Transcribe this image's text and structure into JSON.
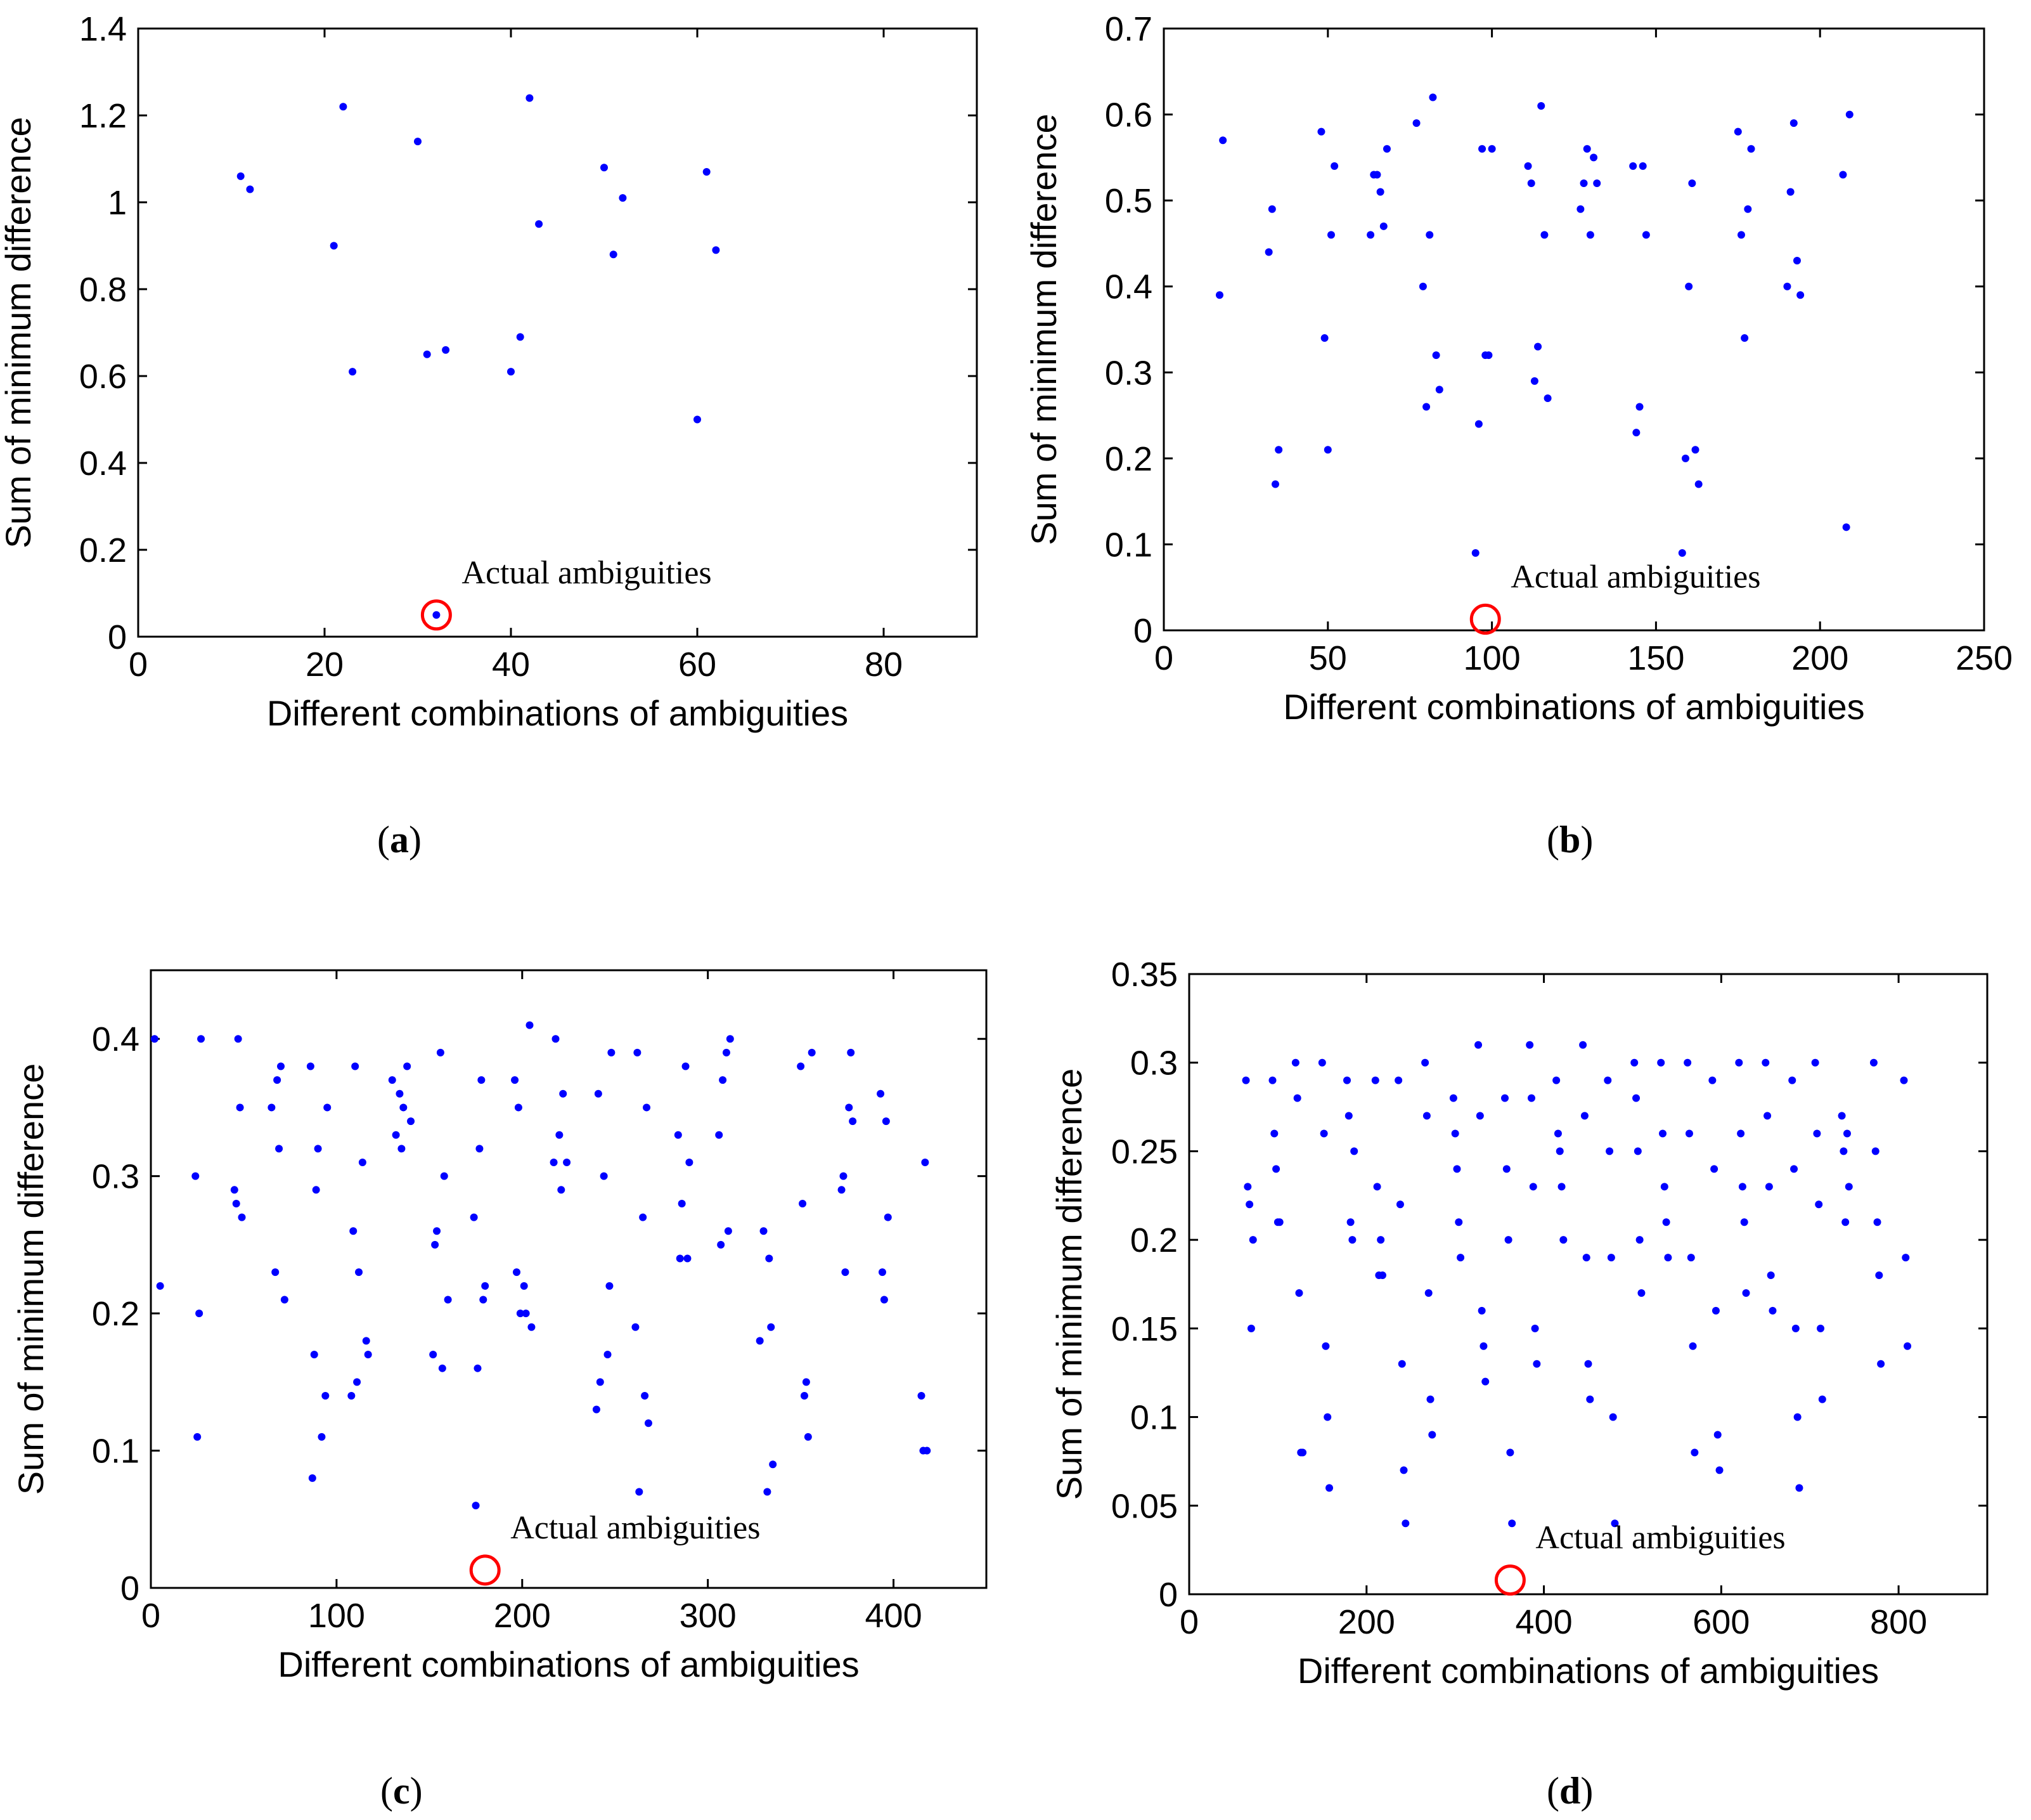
{
  "chart_data": [
    {
      "type": "scatter",
      "panel": "a",
      "xlabel": "Different combinations of ambiguities",
      "ylabel": "Sum of minimum difference",
      "xlim": [
        0,
        90
      ],
      "ylim": [
        0,
        1.4
      ],
      "xticks": [
        0,
        20,
        40,
        60,
        80
      ],
      "yticks": [
        0,
        0.2,
        0.4,
        0.6,
        0.8,
        1,
        1.2,
        1.4
      ],
      "annotation": "Actual ambiguities",
      "highlight": {
        "x": 32,
        "y": 0.05
      },
      "x": [
        11,
        12,
        21,
        22,
        23,
        30,
        31,
        33,
        40,
        41,
        42,
        43,
        50,
        51,
        52,
        60,
        61,
        62,
        32
      ],
      "y": [
        1.06,
        1.03,
        0.9,
        1.22,
        0.61,
        1.14,
        0.65,
        0.66,
        0.61,
        0.69,
        1.24,
        0.95,
        1.08,
        0.88,
        1.01,
        0.5,
        1.07,
        0.89,
        0.05
      ]
    },
    {
      "type": "scatter",
      "panel": "b",
      "xlabel": "Different combinations of ambiguities",
      "ylabel": "Sum of minimum difference",
      "xlim": [
        0,
        250
      ],
      "ylim": [
        0,
        0.7
      ],
      "xticks": [
        0,
        50,
        100,
        150,
        200,
        250
      ],
      "yticks": [
        0,
        0.1,
        0.2,
        0.3,
        0.4,
        0.5,
        0.6,
        0.7
      ],
      "annotation": "Actual ambiguities",
      "highlight": {
        "x": 98,
        "y": 0.013
      },
      "x": [
        17,
        18,
        32,
        33,
        34,
        35,
        48,
        49,
        50,
        51,
        52,
        63,
        64,
        65,
        66,
        67,
        68,
        77,
        79,
        80,
        81,
        82,
        83,
        84,
        95,
        96,
        97,
        98,
        99,
        100,
        111,
        112,
        113,
        114,
        115,
        116,
        117,
        127,
        128,
        129,
        130,
        131,
        132,
        143,
        144,
        145,
        146,
        147,
        158,
        159,
        160,
        161,
        162,
        163,
        175,
        176,
        177,
        178,
        179,
        190,
        191,
        192,
        193,
        194,
        207,
        208,
        209
      ],
      "y": [
        0.39,
        0.57,
        0.44,
        0.49,
        0.17,
        0.21,
        0.58,
        0.34,
        0.21,
        0.46,
        0.54,
        0.46,
        0.53,
        0.53,
        0.51,
        0.47,
        0.56,
        0.59,
        0.4,
        0.26,
        0.46,
        0.62,
        0.32,
        0.28,
        0.09,
        0.24,
        0.56,
        0.32,
        0.32,
        0.56,
        0.54,
        0.52,
        0.29,
        0.33,
        0.61,
        0.46,
        0.27,
        0.49,
        0.52,
        0.56,
        0.46,
        0.55,
        0.52,
        0.54,
        0.23,
        0.26,
        0.54,
        0.46,
        0.09,
        0.2,
        0.4,
        0.52,
        0.21,
        0.17,
        0.58,
        0.46,
        0.34,
        0.49,
        0.56,
        0.4,
        0.51,
        0.59,
        0.43,
        0.39,
        0.53,
        0.12,
        0.6
      ]
    },
    {
      "type": "scatter",
      "panel": "c",
      "xlabel": "Different combinations of ambiguities",
      "ylabel": "Sum of minimum difference",
      "xlim": [
        0,
        450
      ],
      "ylim": [
        0,
        0.45
      ],
      "xticks": [
        0,
        100,
        200,
        300,
        400
      ],
      "yticks": [
        0,
        0.1,
        0.2,
        0.3,
        0.4
      ],
      "annotation": "Actual ambiguities",
      "highlight": {
        "x": 180,
        "y": 0.013
      },
      "x": [
        2,
        5,
        24,
        25,
        26,
        27,
        45,
        46,
        47,
        48,
        49,
        65,
        67,
        68,
        69,
        70,
        72,
        86,
        87,
        88,
        89,
        90,
        92,
        94,
        95,
        108,
        109,
        110,
        111,
        112,
        114,
        116,
        117,
        130,
        132,
        134,
        135,
        136,
        138,
        140,
        152,
        153,
        154,
        156,
        157,
        158,
        160,
        174,
        175,
        176,
        177,
        178,
        179,
        180,
        196,
        197,
        198,
        199,
        201,
        202,
        204,
        205,
        217,
        218,
        220,
        221,
        222,
        224,
        240,
        241,
        242,
        244,
        246,
        247,
        248,
        261,
        262,
        263,
        265,
        266,
        267,
        268,
        284,
        285,
        286,
        288,
        289,
        290,
        306,
        307,
        308,
        310,
        311,
        312,
        328,
        330,
        332,
        333,
        334,
        335,
        350,
        351,
        352,
        353,
        354,
        356,
        372,
        373,
        374,
        376,
        377,
        378,
        393,
        394,
        395,
        396,
        397,
        415,
        416,
        417,
        418
      ],
      "y": [
        0.4,
        0.22,
        0.3,
        0.11,
        0.2,
        0.4,
        0.29,
        0.28,
        0.4,
        0.35,
        0.27,
        0.35,
        0.23,
        0.37,
        0.32,
        0.38,
        0.21,
        0.38,
        0.08,
        0.17,
        0.29,
        0.32,
        0.11,
        0.14,
        0.35,
        0.14,
        0.26,
        0.38,
        0.15,
        0.23,
        0.31,
        0.18,
        0.17,
        0.37,
        0.33,
        0.36,
        0.32,
        0.35,
        0.38,
        0.34,
        0.17,
        0.25,
        0.26,
        0.39,
        0.16,
        0.3,
        0.21,
        0.27,
        0.06,
        0.16,
        0.32,
        0.37,
        0.21,
        0.22,
        0.37,
        0.23,
        0.35,
        0.2,
        0.22,
        0.2,
        0.41,
        0.19,
        0.31,
        0.4,
        0.33,
        0.29,
        0.36,
        0.31,
        0.13,
        0.36,
        0.15,
        0.3,
        0.17,
        0.22,
        0.39,
        0.19,
        0.39,
        0.07,
        0.27,
        0.14,
        0.35,
        0.12,
        0.33,
        0.24,
        0.28,
        0.38,
        0.24,
        0.31,
        0.33,
        0.25,
        0.37,
        0.39,
        0.26,
        0.4,
        0.18,
        0.26,
        0.07,
        0.24,
        0.19,
        0.09,
        0.38,
        0.28,
        0.14,
        0.15,
        0.11,
        0.39,
        0.29,
        0.3,
        0.23,
        0.35,
        0.39,
        0.34,
        0.36,
        0.23,
        0.21,
        0.34,
        0.27,
        0.14,
        0.1,
        0.31,
        0.1
      ]
    },
    {
      "type": "scatter",
      "panel": "d",
      "xlabel": "Different combinations of ambiguities",
      "ylabel": "Sum of minimum difference",
      "xlim": [
        0,
        900
      ],
      "ylim": [
        0,
        0.35
      ],
      "xticks": [
        0,
        200,
        400,
        600,
        800
      ],
      "yticks": [
        0,
        0.05,
        0.1,
        0.15,
        0.2,
        0.25,
        0.3,
        0.35
      ],
      "annotation": "Actual ambiguities",
      "highlight": {
        "x": 362,
        "y": 0.008
      },
      "x": [
        64,
        66,
        68,
        70,
        72,
        94,
        96,
        98,
        100,
        102,
        120,
        122,
        124,
        126,
        128,
        150,
        152,
        154,
        156,
        158,
        178,
        180,
        182,
        184,
        186,
        210,
        212,
        214,
        216,
        218,
        236,
        238,
        240,
        242,
        244,
        266,
        268,
        270,
        272,
        274,
        298,
        300,
        302,
        304,
        306,
        326,
        328,
        330,
        332,
        334,
        356,
        358,
        360,
        362,
        364,
        384,
        386,
        388,
        390,
        392,
        414,
        416,
        418,
        420,
        422,
        444,
        446,
        448,
        450,
        452,
        472,
        474,
        476,
        478,
        480,
        502,
        504,
        506,
        508,
        510,
        532,
        534,
        536,
        538,
        540,
        562,
        564,
        566,
        568,
        570,
        590,
        592,
        594,
        596,
        598,
        620,
        622,
        624,
        626,
        628,
        650,
        652,
        654,
        656,
        658,
        680,
        682,
        684,
        686,
        688,
        706,
        708,
        710,
        712,
        714,
        736,
        738,
        740,
        742,
        744,
        772,
        774,
        776,
        778,
        780,
        806,
        808,
        810
      ],
      "y": [
        0.29,
        0.23,
        0.22,
        0.15,
        0.2,
        0.29,
        0.26,
        0.24,
        0.21,
        0.21,
        0.3,
        0.28,
        0.17,
        0.08,
        0.08,
        0.3,
        0.26,
        0.14,
        0.1,
        0.06,
        0.29,
        0.27,
        0.21,
        0.2,
        0.25,
        0.29,
        0.23,
        0.18,
        0.2,
        0.18,
        0.29,
        0.22,
        0.13,
        0.07,
        0.04,
        0.3,
        0.27,
        0.17,
        0.11,
        0.09,
        0.28,
        0.26,
        0.24,
        0.21,
        0.19,
        0.31,
        0.27,
        0.16,
        0.14,
        0.12,
        0.28,
        0.24,
        0.2,
        0.08,
        0.04,
        0.31,
        0.28,
        0.23,
        0.15,
        0.13,
        0.29,
        0.26,
        0.25,
        0.23,
        0.2,
        0.31,
        0.27,
        0.19,
        0.13,
        0.11,
        0.29,
        0.25,
        0.19,
        0.1,
        0.04,
        0.3,
        0.28,
        0.25,
        0.2,
        0.17,
        0.3,
        0.26,
        0.23,
        0.21,
        0.19,
        0.3,
        0.26,
        0.19,
        0.14,
        0.08,
        0.29,
        0.24,
        0.16,
        0.09,
        0.07,
        0.3,
        0.26,
        0.23,
        0.21,
        0.17,
        0.3,
        0.27,
        0.23,
        0.18,
        0.16,
        0.29,
        0.24,
        0.15,
        0.1,
        0.06,
        0.3,
        0.26,
        0.22,
        0.15,
        0.11,
        0.27,
        0.25,
        0.21,
        0.26,
        0.23,
        0.3,
        0.25,
        0.21,
        0.18,
        0.13,
        0.29,
        0.19,
        0.14
      ]
    }
  ],
  "panel_labels": [
    "a",
    "b",
    "c",
    "d"
  ],
  "colors": {
    "points": "#0000ff",
    "highlight_circle": "#ff0000",
    "axes": "#000000"
  }
}
